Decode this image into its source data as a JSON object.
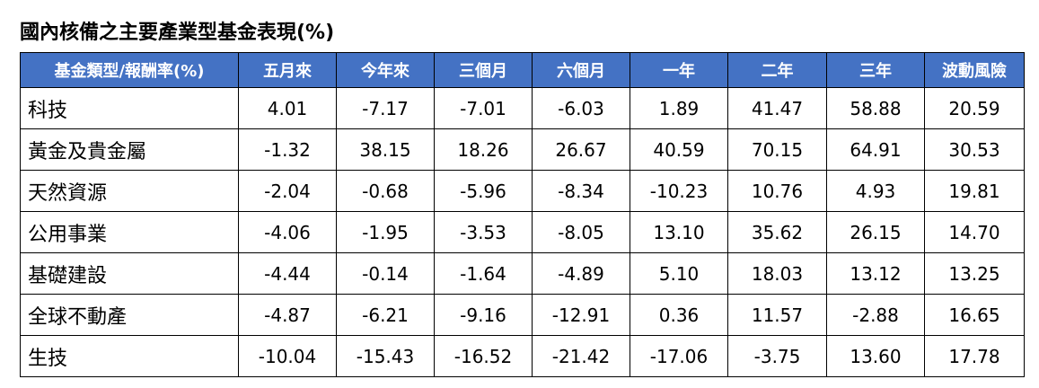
{
  "title": "國內核備之主要產業型基金表現(%)",
  "table": {
    "header": [
      "基金類型/報酬率(%)",
      "五月來",
      "今年來",
      "三個月",
      "六個月",
      "一年",
      "二年",
      "三年",
      "波動風險"
    ],
    "rows": [
      [
        "科技",
        "4.01",
        "-7.17",
        "-7.01",
        "-6.03",
        "1.89",
        "41.47",
        "58.88",
        "20.59"
      ],
      [
        "黃金及貴金屬",
        "-1.32",
        "38.15",
        "18.26",
        "26.67",
        "40.59",
        "70.15",
        "64.91",
        "30.53"
      ],
      [
        "天然資源",
        "-2.04",
        "-0.68",
        "-5.96",
        "-8.34",
        "-10.23",
        "10.76",
        "4.93",
        "19.81"
      ],
      [
        "公用事業",
        "-4.06",
        "-1.95",
        "-3.53",
        "-8.05",
        "13.10",
        "35.62",
        "26.15",
        "14.70"
      ],
      [
        "基礎建設",
        "-4.44",
        "-0.14",
        "-1.64",
        "-4.89",
        "5.10",
        "18.03",
        "13.12",
        "13.25"
      ],
      [
        "全球不動產",
        "-4.87",
        "-6.21",
        "-9.16",
        "-12.91",
        "0.36",
        "11.57",
        "-2.88",
        "16.65"
      ],
      [
        "生技",
        "-10.04",
        "-15.43",
        "-16.52",
        "-21.42",
        "-17.06",
        "-3.75",
        "13.60",
        "17.78"
      ]
    ]
  }
}
